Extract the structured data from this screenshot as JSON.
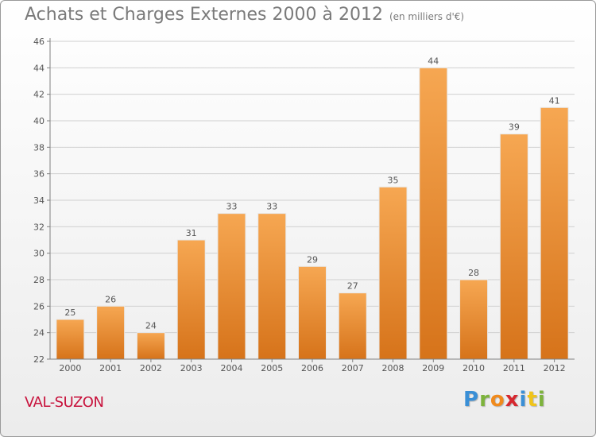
{
  "header": {
    "title": "Achats et Charges Externes 2000 à 2012",
    "unit": "(en milliers d'€)"
  },
  "footer": {
    "commune": "VAL-SUZON",
    "logo_text": "Proxiti"
  },
  "colors": {
    "bar_top": "#f6a752",
    "bar_bottom": "#d6731a",
    "commune": "#c8123c"
  },
  "chart_data": {
    "type": "bar",
    "title": "Achats et Charges Externes 2000 à 2012",
    "subtitle": "(en milliers d'€)",
    "categories": [
      "2000",
      "2001",
      "2002",
      "2003",
      "2004",
      "2005",
      "2006",
      "2007",
      "2008",
      "2009",
      "2010",
      "2011",
      "2012"
    ],
    "values": [
      25,
      26,
      24,
      31,
      33,
      33,
      29,
      27,
      35,
      44,
      28,
      39,
      41
    ],
    "ylim": [
      22,
      46
    ],
    "yticks": [
      22,
      24,
      26,
      28,
      30,
      32,
      34,
      36,
      38,
      40,
      42,
      44,
      46
    ],
    "grid": "horizontal",
    "data_labels": true
  }
}
